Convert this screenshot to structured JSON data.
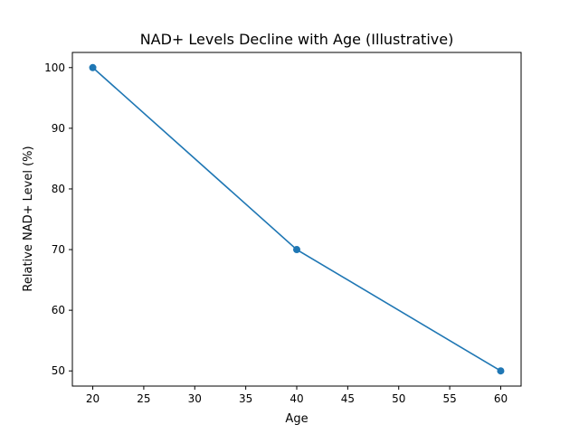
{
  "chart_data": {
    "type": "line",
    "title": "NAD+ Levels Decline with Age (Illustrative)",
    "xlabel": "Age",
    "ylabel": "Relative NAD+ Level (%)",
    "x": [
      20,
      40,
      60
    ],
    "series": [
      {
        "values": [
          100,
          70,
          50
        ],
        "marker": "circle"
      }
    ],
    "xlim": [
      18,
      62
    ],
    "ylim": [
      47.5,
      102.5
    ],
    "xticks": [
      20,
      25,
      30,
      35,
      40,
      45,
      50,
      55,
      60
    ],
    "yticks": [
      50,
      60,
      70,
      80,
      90,
      100
    ],
    "grid": false,
    "color": "#1f77b4"
  }
}
